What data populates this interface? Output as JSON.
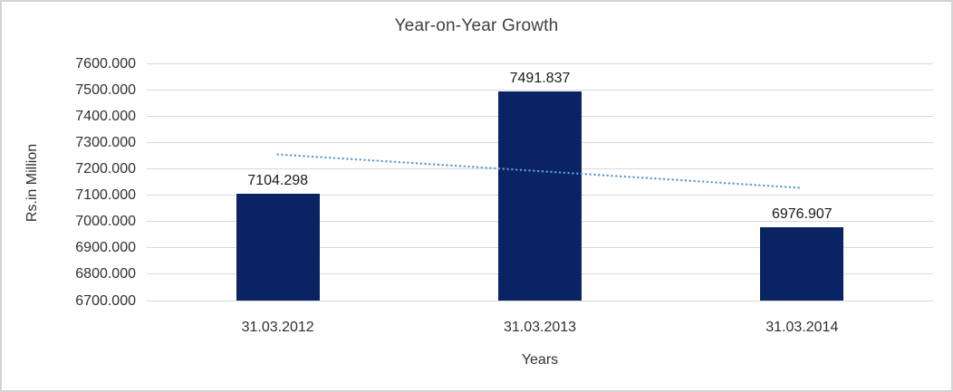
{
  "chart_data": {
    "type": "bar",
    "title": "Year-on-Year Growth",
    "xlabel": "Years",
    "ylabel": "Rs.in Million",
    "categories": [
      "31.03.2012",
      "31.03.2013",
      "31.03.2014"
    ],
    "values": [
      7104.298,
      7491.837,
      6976.907
    ],
    "data_labels": [
      "7104.298",
      "7491.837",
      "6976.907"
    ],
    "ylim": [
      6700,
      7600
    ],
    "ytick_step": 100,
    "ytick_labels": [
      "6700.000",
      "6800.000",
      "6900.000",
      "7000.000",
      "7100.000",
      "7200.000",
      "7300.000",
      "7400.000",
      "7500.000",
      "7600.000"
    ],
    "grid": "horizontal-only",
    "legend": "none",
    "colors": {
      "bar_fill": "#0a2463",
      "trendline": "#5b9bd5",
      "gridline": "#d9d9d9",
      "text": "#303030"
    },
    "trendline": {
      "style": "dotted",
      "shape": "linear",
      "values": [
        7254.71,
        7191.01,
        7127.32
      ]
    }
  }
}
